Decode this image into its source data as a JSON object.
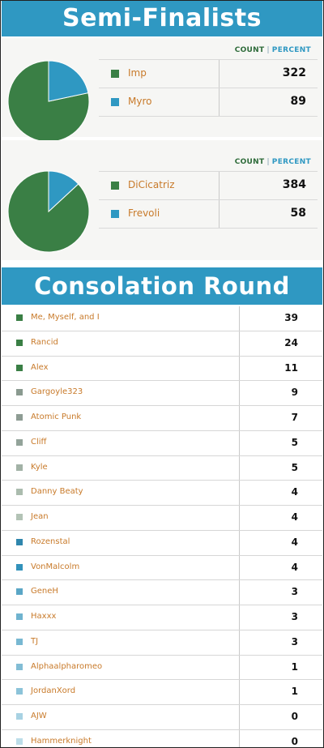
{
  "semi_finalists": {
    "title": "Semi-Finalists",
    "count_label": "COUNT",
    "separator": "|",
    "percent_label": "PERCENT"
  },
  "consolation": {
    "title": "Consolation Round"
  },
  "chart_data": [
    {
      "type": "pie",
      "categories": [
        "Imp",
        "Myro"
      ],
      "values": [
        322,
        89
      ],
      "colors": [
        "#3a7f45",
        "#2f98c2"
      ]
    },
    {
      "type": "pie",
      "categories": [
        "DiCicatriz",
        "Frevoli"
      ],
      "values": [
        384,
        58
      ],
      "colors": [
        "#3a7f45",
        "#2f98c2"
      ]
    },
    {
      "type": "table",
      "categories": [
        "Me, Myself, and I",
        "Rancid",
        "Alex",
        "Gargoyle323",
        "Atomic Punk",
        "Cliff",
        "Kyle",
        "Danny Beaty",
        "Jean",
        "Rozenstal",
        "VonMalcolm",
        "GeneH",
        "Haxxx",
        "TJ",
        "Alphaalpharomeo",
        "JordanXord",
        "AJW",
        "Hammerknight"
      ],
      "values": [
        39,
        24,
        11,
        9,
        7,
        5,
        5,
        4,
        4,
        4,
        4,
        3,
        3,
        3,
        1,
        1,
        0,
        0
      ],
      "colors": [
        "#3a7f45",
        "#3a7f45",
        "#3a7f45",
        "#8a9a90",
        "#8e9c94",
        "#93a39a",
        "#a2b2a6",
        "#abbcae",
        "#b3c3b6",
        "#2f86ad",
        "#3292bb",
        "#5aa6c6",
        "#6fb3cf",
        "#78b8d2",
        "#82bdd5",
        "#8cc3d9",
        "#a8d2e3",
        "#bcdde9"
      ]
    }
  ]
}
